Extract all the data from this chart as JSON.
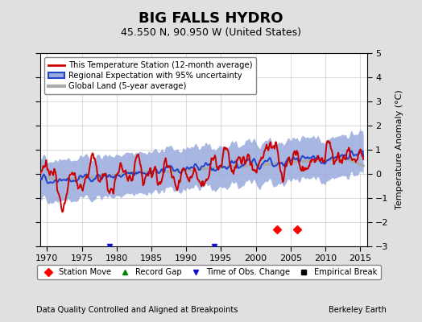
{
  "title": "BIG FALLS HYDRO",
  "subtitle": "45.550 N, 90.950 W (United States)",
  "ylabel": "Temperature Anomaly (°C)",
  "footnote_left": "Data Quality Controlled and Aligned at Breakpoints",
  "footnote_right": "Berkeley Earth",
  "ylim": [
    -3,
    5
  ],
  "xlim": [
    1969,
    2016
  ],
  "xticks": [
    1970,
    1975,
    1980,
    1985,
    1990,
    1995,
    2000,
    2005,
    2010,
    2015
  ],
  "yticks": [
    -3,
    -2,
    -1,
    0,
    1,
    2,
    3,
    4,
    5
  ],
  "bg_color": "#e0e0e0",
  "plot_bg_color": "#ffffff",
  "station_color": "#cc0000",
  "regional_color": "#2244cc",
  "regional_fill_color": "#99aadd",
  "global_color": "#aaaaaa",
  "station_move_years": [
    2003,
    2006
  ],
  "station_move_y": -2.3,
  "time_obs_years": [
    1979,
    1994
  ],
  "time_obs_y": -3.0
}
